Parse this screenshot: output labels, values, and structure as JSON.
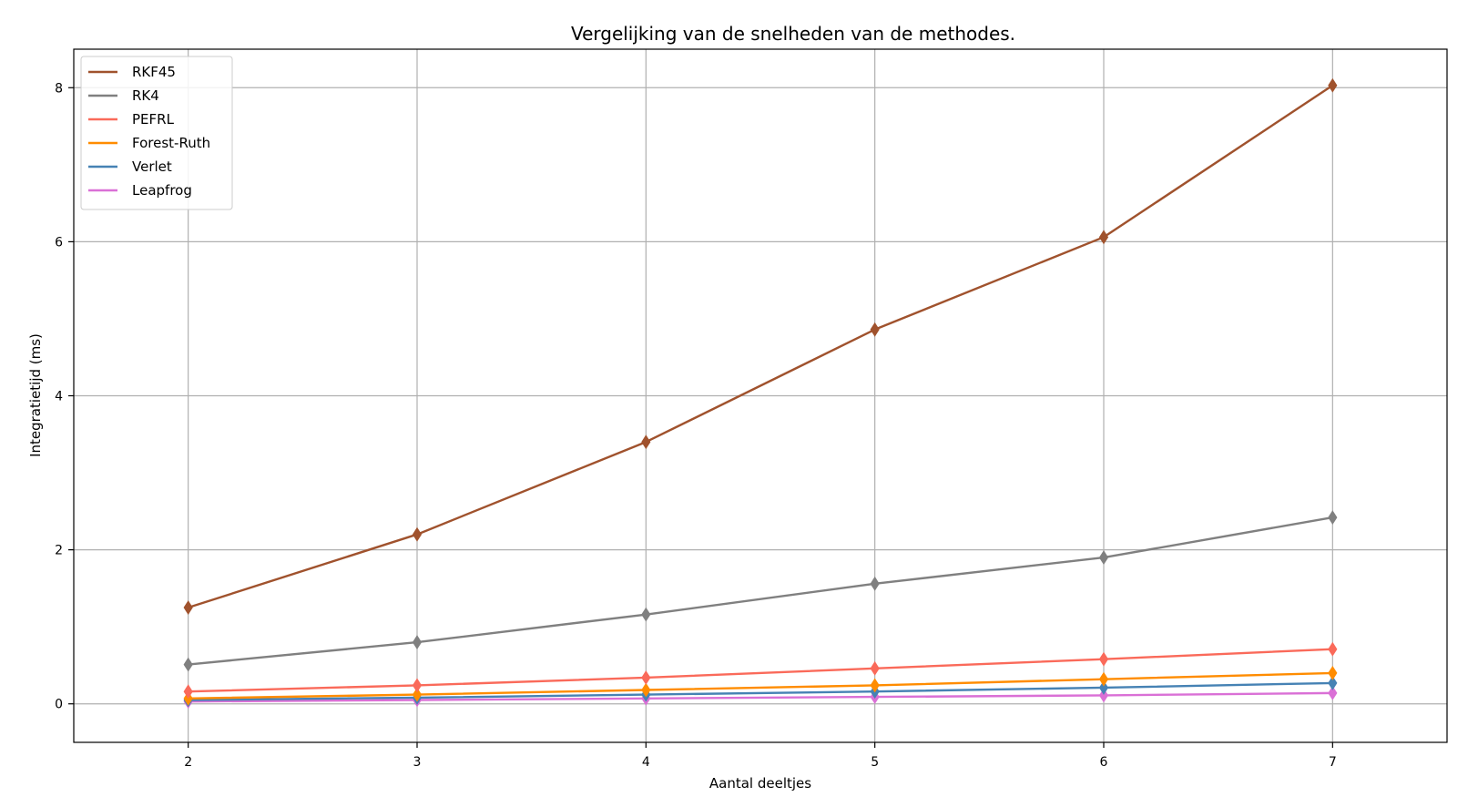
{
  "chart_data": {
    "type": "line",
    "title": "Vergelijking van de snelheden van de methodes.",
    "xlabel": "Aantal deeltjes",
    "ylabel": "Integratietijd (ms)",
    "xlim": [
      1.5,
      7.5
    ],
    "ylim": [
      -0.5,
      8.5
    ],
    "xticks": [
      2,
      3,
      4,
      5,
      6,
      7
    ],
    "yticks": [
      0,
      2,
      4,
      6,
      8
    ],
    "grid": true,
    "legend_position": "top-left",
    "marker": "thin-diamond",
    "x": [
      2,
      3,
      4,
      5,
      6,
      7
    ],
    "series": [
      {
        "name": "RKF45",
        "color": "#a0522d",
        "values": [
          1.25,
          2.2,
          3.4,
          4.86,
          6.06,
          8.03
        ]
      },
      {
        "name": "RK4",
        "color": "#808080",
        "values": [
          0.51,
          0.8,
          1.16,
          1.56,
          1.9,
          2.42
        ]
      },
      {
        "name": "PEFRL",
        "color": "#fa6a5a",
        "values": [
          0.16,
          0.24,
          0.34,
          0.46,
          0.58,
          0.71
        ]
      },
      {
        "name": "Forest-Ruth",
        "color": "#ff8c00",
        "values": [
          0.07,
          0.12,
          0.18,
          0.24,
          0.32,
          0.4
        ]
      },
      {
        "name": "Verlet",
        "color": "#4682b4",
        "values": [
          0.05,
          0.08,
          0.12,
          0.16,
          0.21,
          0.27
        ]
      },
      {
        "name": "Leapfrog",
        "color": "#da70d6",
        "values": [
          0.03,
          0.05,
          0.07,
          0.09,
          0.11,
          0.14
        ]
      }
    ]
  }
}
